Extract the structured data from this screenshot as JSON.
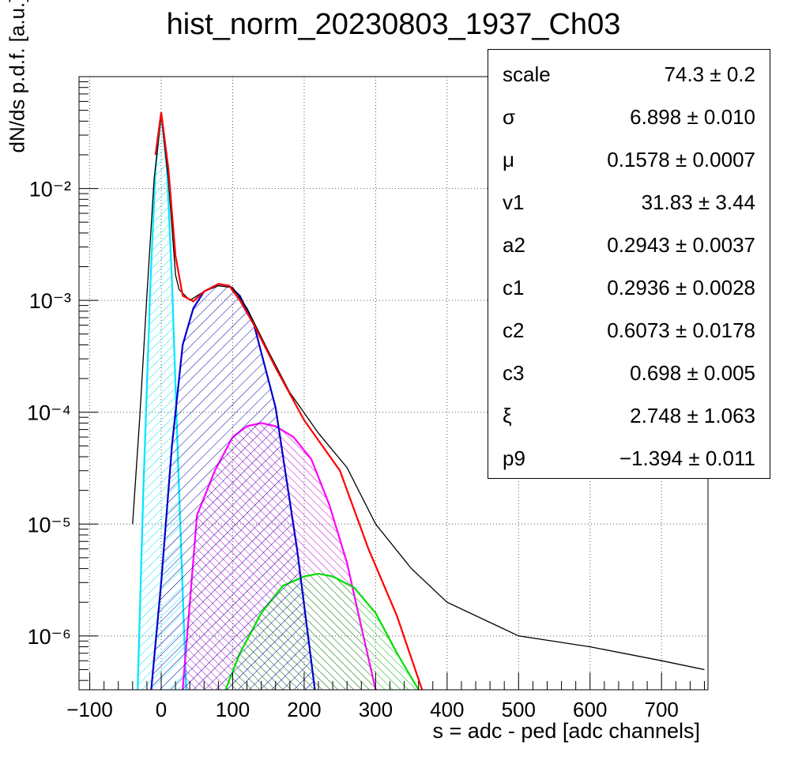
{
  "chart_data": {
    "type": "line",
    "title": "hist_norm_20230803_1937_Ch03",
    "xlabel": "s = adc - ped [adc channels]",
    "ylabel": "dN/ds p.d.f. [a.u.]",
    "xlim": [
      -115,
      765
    ],
    "ylim": [
      3.3e-07,
      0.1
    ],
    "yscale": "log",
    "grid": true,
    "x_ticks": [
      "−100",
      "0",
      "100",
      "200",
      "300",
      "400",
      "500",
      "600",
      "700"
    ],
    "x_tick_values": [
      -100,
      0,
      100,
      200,
      300,
      400,
      500,
      600,
      700
    ],
    "y_ticks": [
      "10⁻²",
      "10⁻³",
      "10⁻⁴",
      "10⁻⁵",
      "10⁻⁶"
    ],
    "y_tick_values": [
      0.01,
      0.001,
      0.0001,
      1e-05,
      1e-06
    ],
    "series": [
      {
        "color": "#000000",
        "x": [
          -40,
          -30,
          -20,
          -10,
          0,
          10,
          20,
          25,
          40,
          60,
          80,
          100,
          120,
          150,
          180,
          220,
          260,
          300,
          350,
          400,
          500,
          600,
          700,
          760
        ],
        "y": [
          1e-05,
          9e-05,
          0.0011,
          0.012,
          0.045,
          0.012,
          0.0017,
          0.00125,
          0.001,
          0.0012,
          0.00135,
          0.0013,
          0.00085,
          0.00035,
          0.00015,
          6.5e-05,
          3.2e-05,
          1e-05,
          4e-06,
          2e-06,
          1e-06,
          8e-07,
          6e-07,
          5e-07
        ]
      },
      {
        "color": "#ff0000",
        "x": [
          -8,
          0,
          10,
          20,
          30,
          45,
          60,
          80,
          95,
          110,
          130,
          160,
          200,
          250,
          290,
          330,
          365
        ],
        "y": [
          0.02,
          0.048,
          0.015,
          0.0025,
          0.0011,
          0.00098,
          0.0012,
          0.0014,
          0.00135,
          0.001,
          0.0006,
          0.00025,
          8.5e-05,
          3e-05,
          6e-06,
          1.5e-06,
          3.3e-07
        ]
      },
      {
        "color": "#00e5ff",
        "x": [
          -33,
          -25,
          -15,
          -8,
          0,
          8,
          15,
          25,
          35
        ],
        "y": [
          3.3e-07,
          2e-05,
          0.0015,
          0.015,
          0.047,
          0.015,
          0.0015,
          2e-05,
          3.3e-07
        ]
      },
      {
        "color": "#0000cc",
        "x": [
          -14,
          0,
          15,
          30,
          45,
          60,
          80,
          95,
          110,
          130,
          160,
          190,
          215
        ],
        "y": [
          3.3e-07,
          3e-06,
          5e-05,
          0.0004,
          0.00085,
          0.0012,
          0.0014,
          0.00135,
          0.0011,
          0.0006,
          0.00011,
          6e-06,
          3.3e-07
        ]
      },
      {
        "color": "#ff00ff",
        "x": [
          30,
          50,
          75,
          100,
          120,
          140,
          160,
          185,
          210,
          235,
          260,
          280,
          300
        ],
        "y": [
          3.3e-07,
          1.2e-05,
          3e-05,
          6e-05,
          7.5e-05,
          8e-05,
          7.5e-05,
          6e-05,
          3.8e-05,
          1.5e-05,
          4.5e-06,
          1.2e-06,
          3.3e-07
        ]
      },
      {
        "color": "#00dd00",
        "x": [
          90,
          110,
          140,
          170,
          200,
          220,
          240,
          270,
          300,
          330,
          360
        ],
        "y": [
          3.3e-07,
          7e-07,
          1.6e-06,
          2.8e-06,
          3.4e-06,
          3.6e-06,
          3.4e-06,
          2.7e-06,
          1.6e-06,
          7e-07,
          3.3e-07
        ]
      }
    ]
  },
  "stats": [
    {
      "name": "scale",
      "value": "74.3 ± 0.2"
    },
    {
      "name": "σ",
      "value": "6.898 ± 0.010"
    },
    {
      "name": "μ",
      "value": "0.1578 ± 0.0007"
    },
    {
      "name": "v1",
      "value": "31.83 ± 3.44"
    },
    {
      "name": "a2",
      "value": "0.2943 ± 0.0037"
    },
    {
      "name": "c1",
      "value": "0.2936 ± 0.0028"
    },
    {
      "name": "c2",
      "value": "0.6073 ± 0.0178"
    },
    {
      "name": "c3",
      "value": "0.698 ± 0.005"
    },
    {
      "name": "ξ",
      "value": "2.748 ± 1.063"
    },
    {
      "name": "p9",
      "value": "−1.394 ± 0.011"
    }
  ]
}
